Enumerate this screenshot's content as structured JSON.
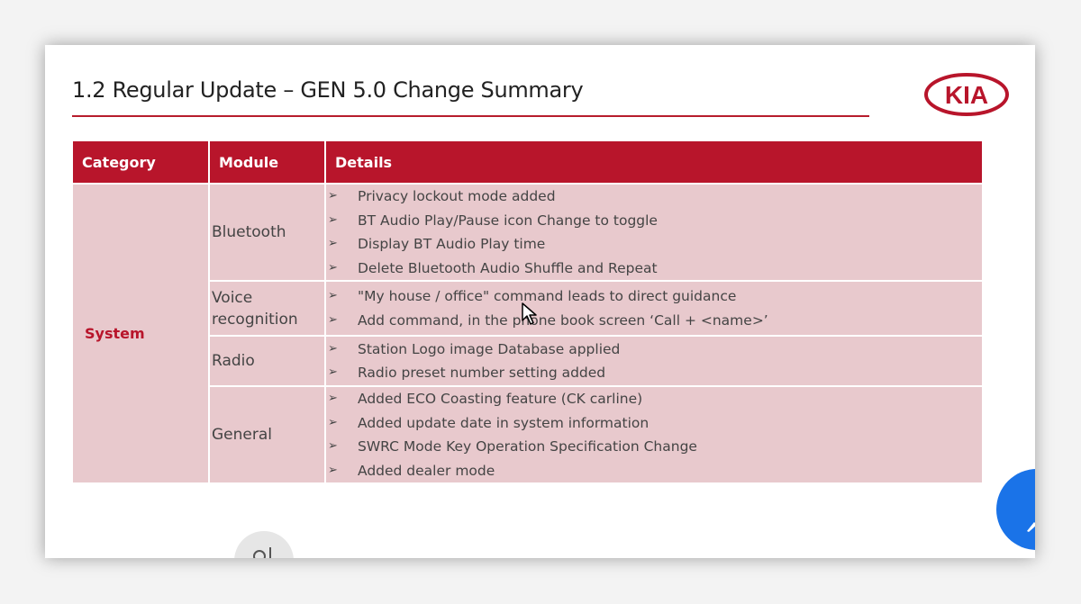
{
  "slide": {
    "title": "1.2 Regular Update – GEN 5.0 Change Summary",
    "logo_text": "KIA",
    "accent_color": "#b8152b"
  },
  "table": {
    "headers": [
      "Category",
      "Module",
      "Details"
    ],
    "category": "System",
    "modules": [
      {
        "name": "Bluetooth",
        "details": [
          "Privacy lockout mode added",
          "BT Audio Play/Pause icon Change to toggle",
          "Display BT Audio Play time",
          "Delete Bluetooth Audio Shuffle and Repeat"
        ]
      },
      {
        "name": "Voice recognition",
        "details": [
          "\"My house / office\" command leads to direct guidance",
          "Add command, in the phone book screen ‘Call + <name>’"
        ]
      },
      {
        "name": "Radio",
        "details": [
          "Station Logo image Database applied",
          "Radio preset number setting added"
        ]
      },
      {
        "name": "General",
        "details": [
          "Added ECO Coasting feature (CK carline)",
          "Added update date in system information",
          "SWRC Mode Key Operation Specification Change",
          "Added dealer mode"
        ]
      }
    ],
    "bullet_symbol": "➢"
  }
}
